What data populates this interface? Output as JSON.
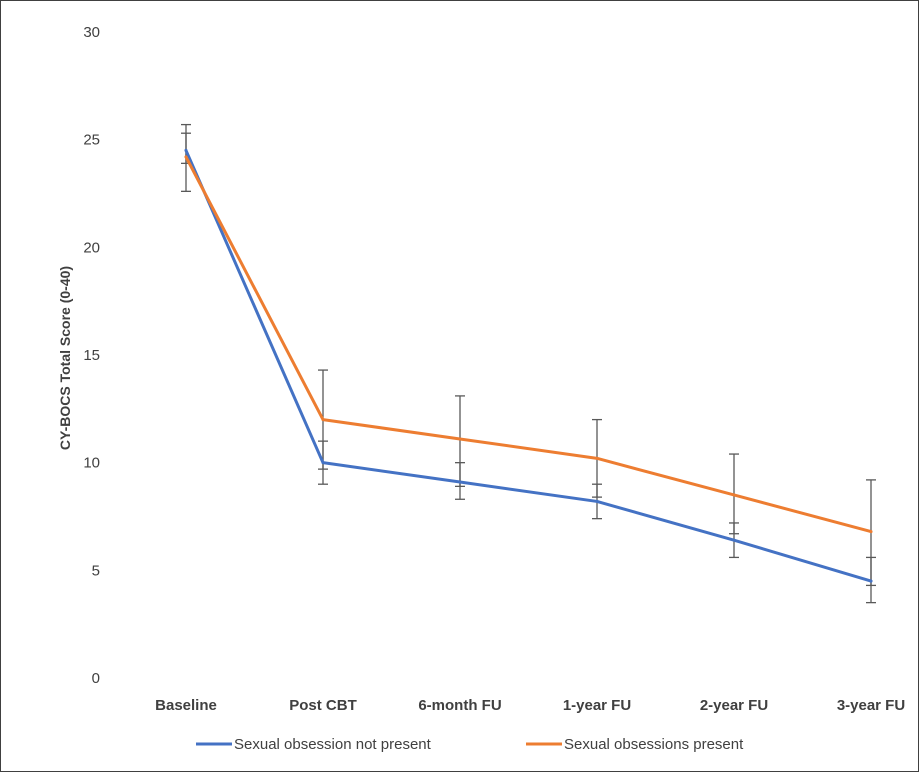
{
  "chart_data": {
    "type": "line",
    "title": "",
    "xlabel": "",
    "ylabel": "CY-BOCS Total Score (0-40)",
    "ylim": [
      0,
      30
    ],
    "yticks": [
      0,
      5,
      10,
      15,
      20,
      25,
      30
    ],
    "grid": false,
    "legend_position": "bottom",
    "categories": [
      "Baseline",
      "Post CBT",
      "6-month FU",
      "1-year FU",
      "2-year FU",
      "3-year FU"
    ],
    "series": [
      {
        "name": "Sexual obsession not present",
        "color": "#4472C4",
        "values": [
          24.5,
          10.0,
          9.1,
          8.2,
          6.4,
          4.5
        ],
        "error_low": [
          23.9,
          9.0,
          8.3,
          7.4,
          5.6,
          3.5
        ],
        "error_high": [
          25.3,
          11.0,
          10.0,
          9.0,
          7.2,
          5.6
        ]
      },
      {
        "name": "Sexual obsessions present",
        "color": "#ED7D31",
        "values": [
          24.2,
          12.0,
          11.1,
          10.2,
          8.5,
          6.8
        ],
        "error_low": [
          22.6,
          9.7,
          8.9,
          8.4,
          6.7,
          4.3
        ],
        "error_high": [
          25.7,
          14.3,
          13.1,
          12.0,
          10.4,
          9.2
        ]
      }
    ]
  }
}
